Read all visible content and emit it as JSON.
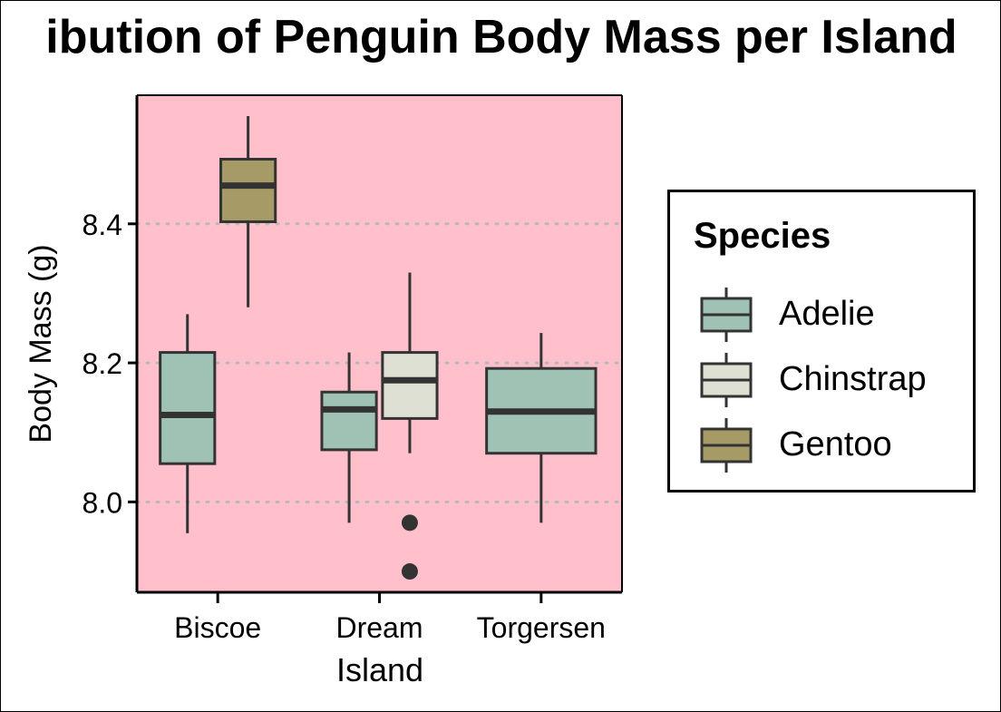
{
  "chart_data": {
    "type": "box",
    "title": "ibution of Penguin Body Mass per Island",
    "xlabel": "Island",
    "ylabel": "Body Mass (g)",
    "categories": [
      "Biscoe",
      "Dream",
      "Torgersen"
    ],
    "ylim": [
      7.87,
      8.585
    ],
    "yticks": [
      "8.0",
      "8.2",
      "8.4"
    ],
    "ytick_values": [
      8.0,
      8.2,
      8.4
    ],
    "grid": {
      "major_y": true,
      "style": "dotted"
    },
    "panel_background": "#ffc0cb",
    "legend": {
      "title": "Species",
      "placement": "right"
    },
    "series": [
      {
        "name": "Adelie",
        "color": "#9fc2b5",
        "boxes": [
          {
            "category": "Biscoe",
            "min": 7.955,
            "q1": 8.055,
            "median": 8.125,
            "q3": 8.215,
            "max": 8.27,
            "outliers": []
          },
          {
            "category": "Dream",
            "min": 7.97,
            "q1": 8.075,
            "median": 8.133,
            "q3": 8.158,
            "max": 8.215,
            "outliers": []
          },
          {
            "category": "Torgersen",
            "min": 7.97,
            "q1": 8.07,
            "median": 8.13,
            "q3": 8.192,
            "max": 8.243,
            "outliers": []
          }
        ]
      },
      {
        "name": "Chinstrap",
        "color": "#dfe0d4",
        "boxes": [
          {
            "category": "Dream",
            "min": 8.07,
            "q1": 8.12,
            "median": 8.175,
            "q3": 8.215,
            "max": 8.33,
            "outliers": [
              7.97,
              7.9
            ]
          }
        ]
      },
      {
        "name": "Gentoo",
        "color": "#a69b66",
        "boxes": [
          {
            "category": "Biscoe",
            "min": 8.28,
            "q1": 8.403,
            "median": 8.455,
            "q3": 8.493,
            "max": 8.555,
            "outliers": []
          }
        ]
      }
    ]
  }
}
